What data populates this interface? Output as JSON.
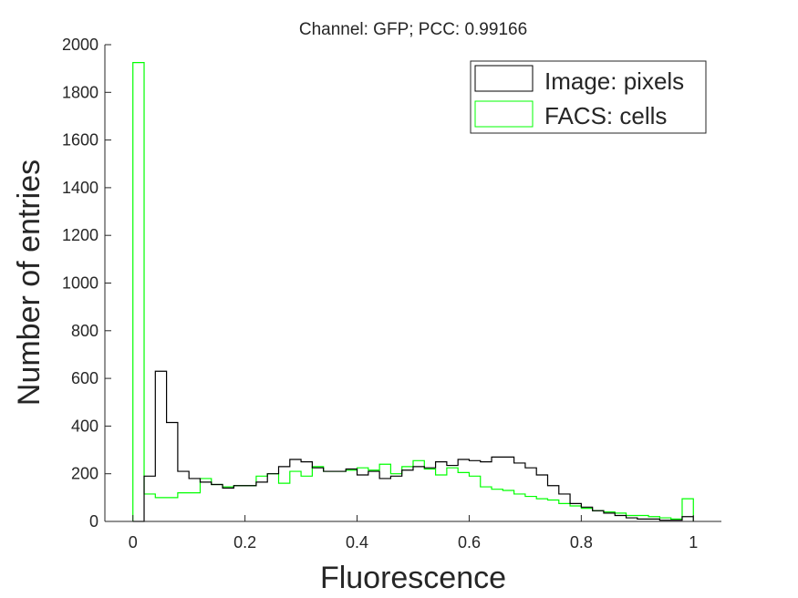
{
  "chart_data": {
    "type": "histogram",
    "title": "Channel: GFP; PCC: 0.99166",
    "xlabel": "Fluorescence",
    "ylabel": "Number of entries",
    "xlim": [
      -0.05,
      1.05
    ],
    "ylim": [
      0,
      2000
    ],
    "xticks": [
      0,
      0.2,
      0.4,
      0.6,
      0.8,
      1
    ],
    "xtick_labels": [
      "0",
      "0.2",
      "0.4",
      "0.6",
      "0.8",
      "1"
    ],
    "yticks": [
      0,
      200,
      400,
      600,
      800,
      1000,
      1200,
      1400,
      1600,
      1800,
      2000
    ],
    "ytick_labels": [
      "0",
      "200",
      "400",
      "600",
      "800",
      "1000",
      "1200",
      "1400",
      "1600",
      "1800",
      "2000"
    ],
    "grid": false,
    "legend_position": "top-right",
    "series": [
      {
        "name": "Image: pixels",
        "color": "#000000",
        "edges": [
          0,
          0.02,
          0.04,
          0.06,
          0.08,
          0.1,
          0.12,
          0.14,
          0.16,
          0.18,
          0.2,
          0.22,
          0.24,
          0.26,
          0.28,
          0.3,
          0.32,
          0.34,
          0.36,
          0.38,
          0.4,
          0.42,
          0.44,
          0.46,
          0.48,
          0.5,
          0.52,
          0.54,
          0.56,
          0.58,
          0.6,
          0.62,
          0.64,
          0.66,
          0.68,
          0.7,
          0.72,
          0.74,
          0.76,
          0.78,
          0.8,
          0.82,
          0.84,
          0.86,
          0.88,
          0.9,
          0.92,
          0.94,
          0.96,
          0.98,
          1.0
        ],
        "values": [
          0,
          190,
          630,
          415,
          210,
          180,
          165,
          155,
          140,
          150,
          150,
          165,
          200,
          230,
          260,
          250,
          225,
          210,
          210,
          220,
          195,
          210,
          180,
          190,
          215,
          230,
          225,
          250,
          235,
          260,
          255,
          250,
          270,
          270,
          245,
          225,
          195,
          150,
          115,
          75,
          60,
          45,
          35,
          25,
          15,
          10,
          10,
          5,
          5,
          20
        ]
      },
      {
        "name": "FACS: cells",
        "color": "#00ff00",
        "edges": [
          0,
          0.02,
          0.04,
          0.06,
          0.08,
          0.1,
          0.12,
          0.14,
          0.16,
          0.18,
          0.2,
          0.22,
          0.24,
          0.26,
          0.28,
          0.3,
          0.32,
          0.34,
          0.36,
          0.38,
          0.4,
          0.42,
          0.44,
          0.46,
          0.48,
          0.5,
          0.52,
          0.54,
          0.56,
          0.58,
          0.6,
          0.62,
          0.64,
          0.66,
          0.68,
          0.7,
          0.72,
          0.74,
          0.76,
          0.78,
          0.8,
          0.82,
          0.84,
          0.86,
          0.88,
          0.9,
          0.92,
          0.94,
          0.96,
          0.98,
          1.0
        ],
        "values": [
          1925,
          115,
          100,
          100,
          120,
          120,
          180,
          155,
          145,
          150,
          150,
          190,
          200,
          160,
          210,
          190,
          230,
          210,
          210,
          215,
          225,
          215,
          240,
          200,
          230,
          255,
          220,
          195,
          225,
          205,
          190,
          145,
          135,
          130,
          115,
          105,
          95,
          90,
          75,
          65,
          55,
          45,
          40,
          35,
          25,
          25,
          20,
          15,
          10,
          95
        ]
      }
    ]
  }
}
